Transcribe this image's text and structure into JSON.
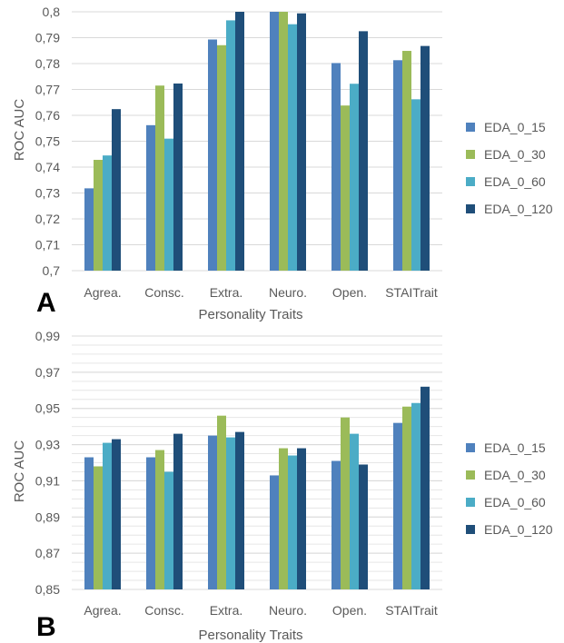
{
  "chart_data": [
    {
      "type": "bar",
      "panel_label": "A",
      "xlabel": "Personality Traits",
      "ylabel": "ROC AUC",
      "ylim": [
        0.7,
        0.8
      ],
      "yticks": [
        "0,7",
        "0,71",
        "0,72",
        "0,73",
        "0,74",
        "0,75",
        "0,76",
        "0,77",
        "0,78",
        "0,79",
        "0,8"
      ],
      "ytick_values": [
        0.7,
        0.71,
        0.72,
        0.73,
        0.74,
        0.75,
        0.76,
        0.77,
        0.78,
        0.79,
        0.8
      ],
      "grid": true,
      "legend_position": "right",
      "categories": [
        "Agrea.",
        "Consc.",
        "Extra.",
        "Neuro.",
        "Open.",
        "STAITrait"
      ],
      "series": [
        {
          "name": "EDA_0_15",
          "color": "#4f81bd",
          "values": [
            0.7318,
            0.7562,
            0.7893,
            0.8,
            0.7802,
            0.7813
          ]
        },
        {
          "name": "EDA_0_30",
          "color": "#9bbb59",
          "values": [
            0.7428,
            0.7715,
            0.7871,
            0.8,
            0.7638,
            0.7849
          ]
        },
        {
          "name": "EDA_0_60",
          "color": "#4bacc6",
          "values": [
            0.7445,
            0.751,
            0.7967,
            0.7952,
            0.7722,
            0.7662
          ]
        },
        {
          "name": "EDA_0_120",
          "color": "#1f4e79",
          "values": [
            0.7624,
            0.7723,
            0.8,
            0.7994,
            0.7925,
            0.7868
          ]
        }
      ]
    },
    {
      "type": "bar",
      "panel_label": "B",
      "xlabel": "Personality Traits",
      "ylabel": "ROC AUC",
      "ylim": [
        0.85,
        0.99
      ],
      "yticks": [
        "0,85",
        "0,87",
        "0,89",
        "0,91",
        "0,93",
        "0,95",
        "0,97",
        "0,99"
      ],
      "ytick_values": [
        0.85,
        0.87,
        0.89,
        0.91,
        0.93,
        0.95,
        0.97,
        0.99
      ],
      "minor_grid_step": 0.005,
      "grid": true,
      "legend_position": "right",
      "categories": [
        "Agrea.",
        "Consc.",
        "Extra.",
        "Neuro.",
        "Open.",
        "STAITrait"
      ],
      "series": [
        {
          "name": "EDA_0_15",
          "color": "#4f81bd",
          "values": [
            0.923,
            0.923,
            0.935,
            0.913,
            0.921,
            0.942
          ]
        },
        {
          "name": "EDA_0_30",
          "color": "#9bbb59",
          "values": [
            0.918,
            0.927,
            0.946,
            0.928,
            0.945,
            0.951
          ]
        },
        {
          "name": "EDA_0_60",
          "color": "#4bacc6",
          "values": [
            0.931,
            0.915,
            0.934,
            0.924,
            0.936,
            0.953
          ]
        },
        {
          "name": "EDA_0_120",
          "color": "#1f4e79",
          "values": [
            0.933,
            0.936,
            0.937,
            0.928,
            0.919,
            0.962
          ]
        }
      ]
    }
  ]
}
